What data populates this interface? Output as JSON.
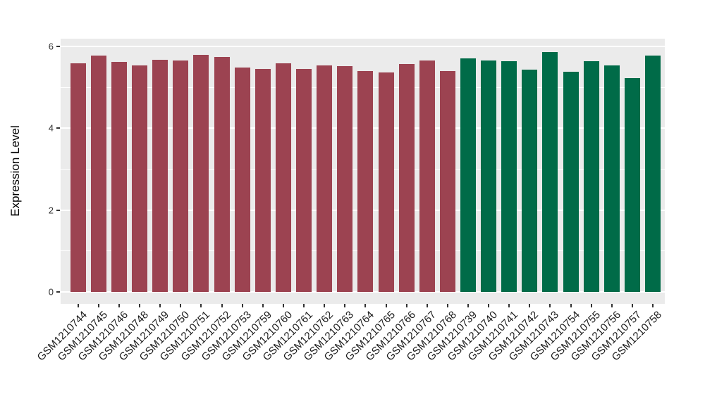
{
  "chart_data": {
    "type": "bar",
    "title": "",
    "xlabel": "",
    "ylabel": "Expression Level",
    "ylim": [
      0,
      6.2
    ],
    "yticks": [
      0,
      2,
      4,
      6
    ],
    "grid": "major-and-minor-white-on-gray",
    "legend_position": "none",
    "colors": {
      "page_background": "#FFFFFF",
      "panel_background": "#EBEBEB",
      "gridline": "#FFFFFF",
      "tick_mark": "#333333",
      "axis_text": "#333333",
      "group_red": "#9C4351",
      "group_green": "#006B48"
    },
    "bars": [
      {
        "label": "GSM1210744",
        "value": 5.58,
        "group": "group_red"
      },
      {
        "label": "GSM1210745",
        "value": 5.78,
        "group": "group_red"
      },
      {
        "label": "GSM1210746",
        "value": 5.62,
        "group": "group_red"
      },
      {
        "label": "GSM1210748",
        "value": 5.54,
        "group": "group_red"
      },
      {
        "label": "GSM1210749",
        "value": 5.67,
        "group": "group_red"
      },
      {
        "label": "GSM1210750",
        "value": 5.66,
        "group": "group_red"
      },
      {
        "label": "GSM1210751",
        "value": 5.8,
        "group": "group_red"
      },
      {
        "label": "GSM1210752",
        "value": 5.75,
        "group": "group_red"
      },
      {
        "label": "GSM1210753",
        "value": 5.49,
        "group": "group_red"
      },
      {
        "label": "GSM1210759",
        "value": 5.45,
        "group": "group_red"
      },
      {
        "label": "GSM1210760",
        "value": 5.58,
        "group": "group_red"
      },
      {
        "label": "GSM1210761",
        "value": 5.45,
        "group": "group_red"
      },
      {
        "label": "GSM1210762",
        "value": 5.53,
        "group": "group_red"
      },
      {
        "label": "GSM1210763",
        "value": 5.51,
        "group": "group_red"
      },
      {
        "label": "GSM1210764",
        "value": 5.39,
        "group": "group_red"
      },
      {
        "label": "GSM1210765",
        "value": 5.36,
        "group": "group_red"
      },
      {
        "label": "GSM1210766",
        "value": 5.57,
        "group": "group_red"
      },
      {
        "label": "GSM1210767",
        "value": 5.66,
        "group": "group_red"
      },
      {
        "label": "GSM1210768",
        "value": 5.4,
        "group": "group_red"
      },
      {
        "label": "GSM1210739",
        "value": 5.71,
        "group": "group_green"
      },
      {
        "label": "GSM1210740",
        "value": 5.65,
        "group": "group_green"
      },
      {
        "label": "GSM1210741",
        "value": 5.64,
        "group": "group_green"
      },
      {
        "label": "GSM1210742",
        "value": 5.44,
        "group": "group_green"
      },
      {
        "label": "GSM1210743",
        "value": 5.86,
        "group": "group_green"
      },
      {
        "label": "GSM1210754",
        "value": 5.38,
        "group": "group_green"
      },
      {
        "label": "GSM1210755",
        "value": 5.64,
        "group": "group_green"
      },
      {
        "label": "GSM1210756",
        "value": 5.53,
        "group": "group_green"
      },
      {
        "label": "GSM1210757",
        "value": 5.23,
        "group": "group_green"
      },
      {
        "label": "GSM1210758",
        "value": 5.78,
        "group": "group_green"
      }
    ]
  }
}
